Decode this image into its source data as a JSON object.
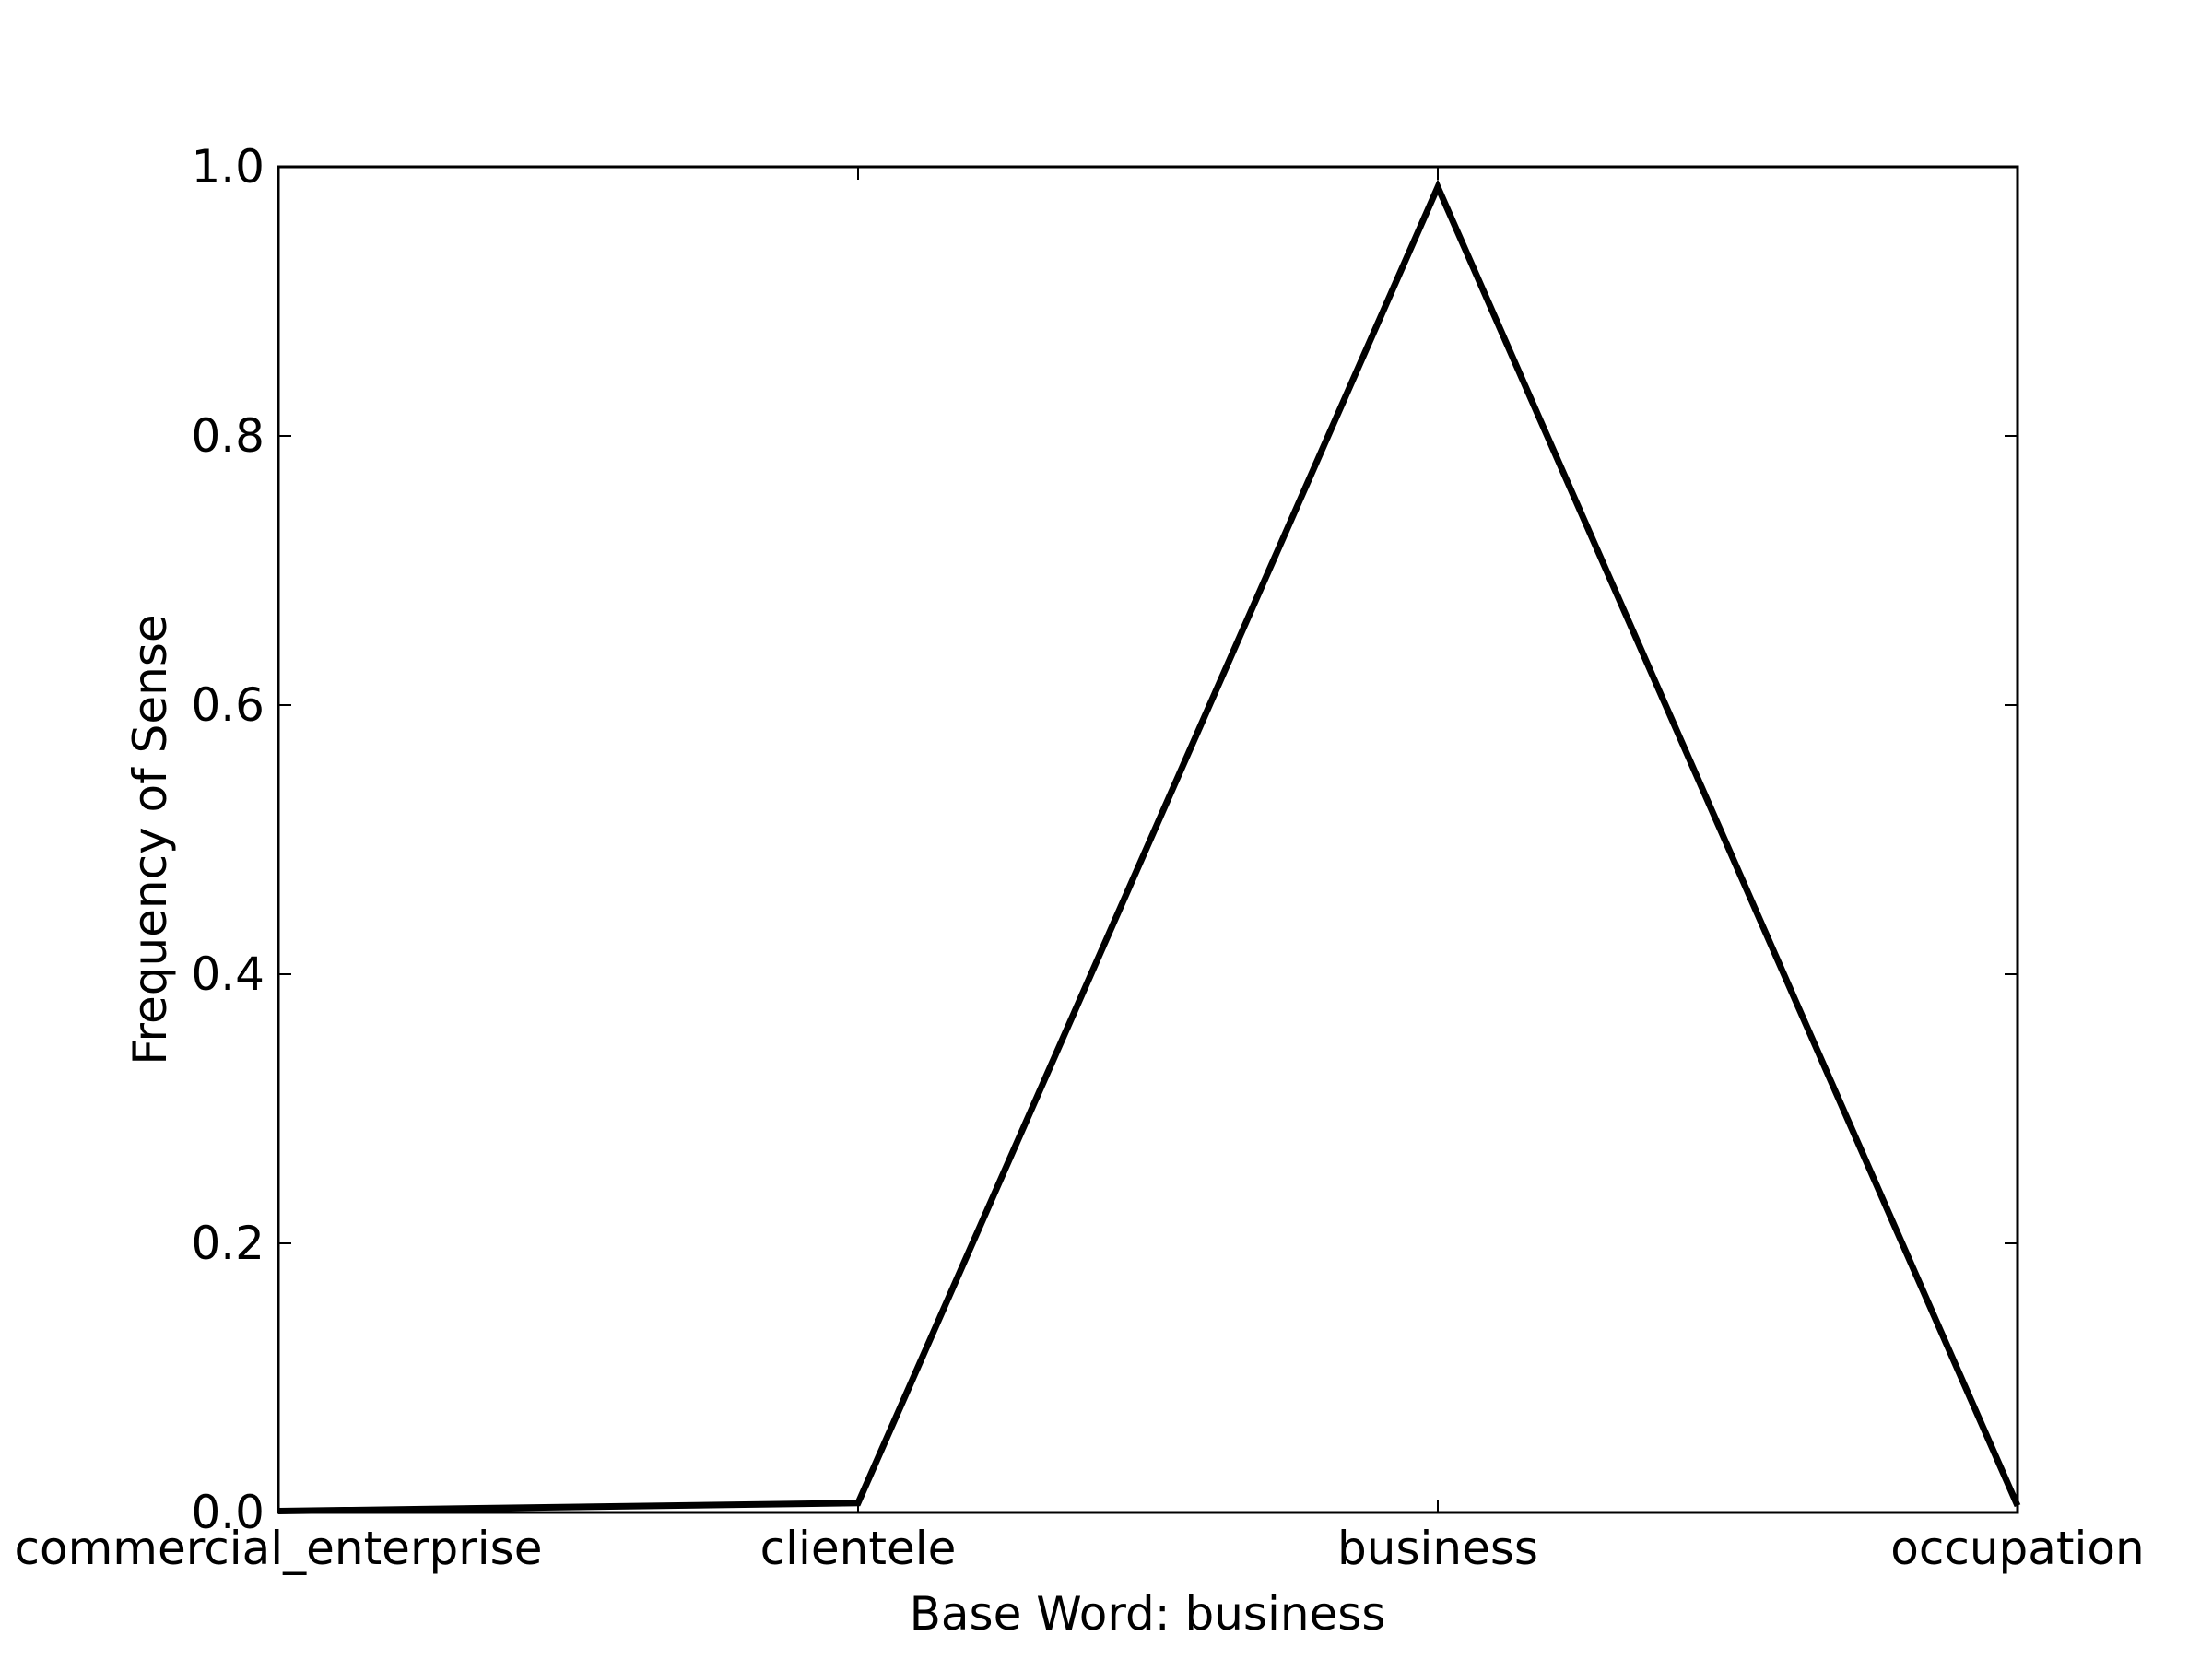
{
  "chart_data": {
    "type": "line",
    "title": "",
    "xlabel": "Base Word: business",
    "ylabel": "Frequency of Sense",
    "categories": [
      "commercial_enterprise",
      "clientele",
      "business",
      "occupation"
    ],
    "series": [
      {
        "values": [
          0.001,
          0.007,
          0.985,
          0.005
        ],
        "color": "#000000"
      }
    ],
    "ylim": [
      0,
      1
    ],
    "yticks": [
      "0.0",
      "0.2",
      "0.4",
      "0.6",
      "0.8",
      "1.0"
    ],
    "grid": false,
    "legend": "none"
  }
}
